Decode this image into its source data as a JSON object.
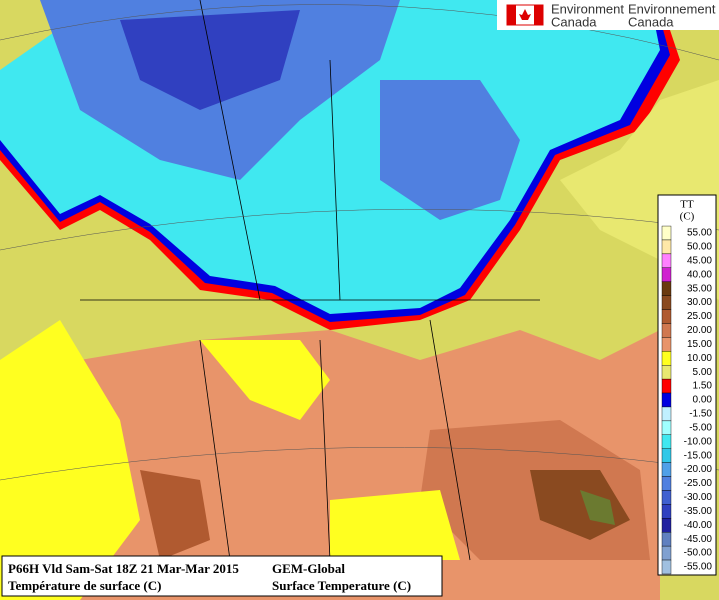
{
  "logo": {
    "english": [
      "Environment",
      "Canada"
    ],
    "french": [
      "Environnement",
      "Canada"
    ]
  },
  "legend": {
    "title": [
      "TT",
      "(C)"
    ],
    "entries": [
      {
        "label": "55.00",
        "color": "#ffffc8"
      },
      {
        "label": "50.00",
        "color": "#ffe8a8"
      },
      {
        "label": "45.00",
        "color": "#ff80ff"
      },
      {
        "label": "40.00",
        "color": "#d020d0"
      },
      {
        "label": "35.00",
        "color": "#6a3a10"
      },
      {
        "label": "30.00",
        "color": "#8a4a20"
      },
      {
        "label": "25.00",
        "color": "#b05a30"
      },
      {
        "label": "20.00",
        "color": "#d07850"
      },
      {
        "label": "15.00",
        "color": "#e8946a"
      },
      {
        "label": "10.00",
        "color": "#ffff20"
      },
      {
        "label": "5.00",
        "color": "#e8e870"
      },
      {
        "label": "1.50",
        "color": "#ff0000"
      },
      {
        "label": "0.00",
        "color": "#0000e0"
      },
      {
        "label": "-1.50",
        "color": "#c0f0ff"
      },
      {
        "label": "-5.00",
        "color": "#a0ffff"
      },
      {
        "label": "-10.00",
        "color": "#40e8f0"
      },
      {
        "label": "-15.00",
        "color": "#30c8e8"
      },
      {
        "label": "-20.00",
        "color": "#50a0e8"
      },
      {
        "label": "-25.00",
        "color": "#5080e0"
      },
      {
        "label": "-30.00",
        "color": "#4060d0"
      },
      {
        "label": "-35.00",
        "color": "#3040c0"
      },
      {
        "label": "-40.00",
        "color": "#2020a0"
      },
      {
        "label": "-45.00",
        "color": "#6080c0"
      },
      {
        "label": "-50.00",
        "color": "#80a0d0"
      },
      {
        "label": "-55.00",
        "color": "#a0c0e0"
      }
    ]
  },
  "footer": {
    "left": [
      "P66H Vld Sam-Sat 18Z 21 Mar-Mar 2015",
      "Température de surface (C)"
    ],
    "right": [
      "GEM-Global",
      "Surface Temperature (C)"
    ]
  }
}
